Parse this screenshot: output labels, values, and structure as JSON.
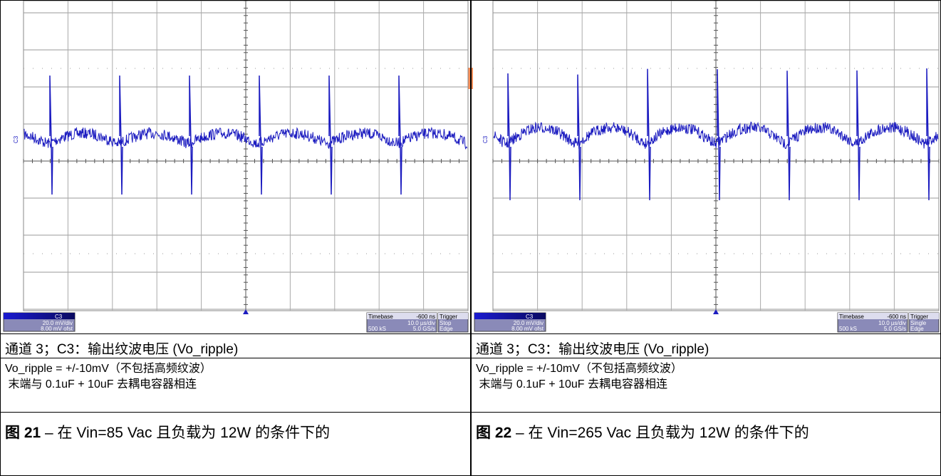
{
  "panels": [
    {
      "scope": {
        "channel": "C3",
        "volts_div": "20.0 mV/div",
        "offset": "8.00 mV ofst",
        "timebase_label": "Timebase",
        "timebase": "-600 ns",
        "trigger_label": "Trigger",
        "time_div": "10.0 µs/div",
        "trigger_mode": "Stop",
        "samples": "500 kS",
        "rate": "5.0 GS/s",
        "trigger_type": "Edge"
      },
      "caption": "通道 3；C3：输出纹波电压 (Vo_ripple)",
      "notes": [
        "Vo_ripple = +/-10mV（不包括高频纹波）",
        " 末端与 0.1uF + 10uF 去耦电容器相连"
      ],
      "figure": {
        "label": "图 21",
        "text": " – 在 Vin=85 Vac 且负载为 12W 的条件下的"
      }
    },
    {
      "scope": {
        "channel": "C3",
        "volts_div": "20.0 mV/div",
        "offset": "8.00 mV ofst",
        "timebase_label": "Timebase",
        "timebase": "-600 ns",
        "trigger_label": "Trigger",
        "time_div": "10.0 µs/div",
        "trigger_mode": "Single",
        "samples": "500 kS",
        "rate": "5.0 GS/s",
        "trigger_type": "Edge"
      },
      "caption": "通道 3；C3：输出纹波电压 (Vo_ripple)",
      "notes": [
        "Vo_ripple = +/-10mV（不包括高频纹波）",
        " 末端与 0.1uF + 10uF 去耦电容器相连"
      ],
      "figure": {
        "label": "图 22",
        "text": " – 在 Vin=265 Vac 且负载为 12W 的条件下的"
      }
    }
  ]
}
